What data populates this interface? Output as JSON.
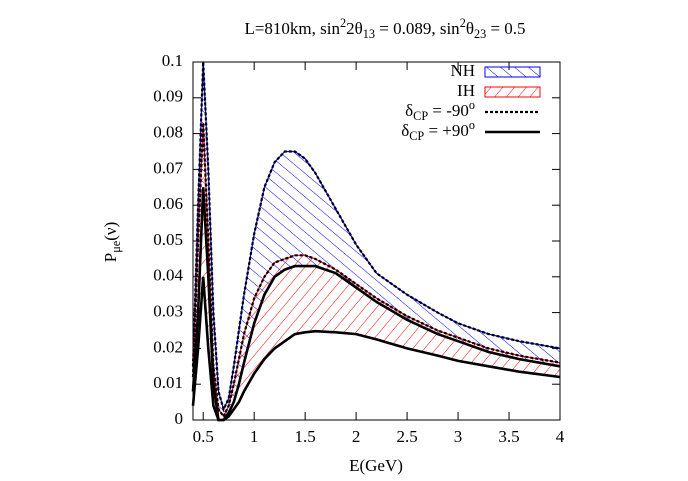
{
  "chart_data": {
    "type": "band",
    "title": [
      [
        "L=810km, sin"
      ],
      [
        "2",
        "sup"
      ],
      [
        "2θ"
      ],
      [
        "13",
        "sub"
      ],
      [
        " = 0.089, sin"
      ],
      [
        "2",
        "sup"
      ],
      [
        "θ"
      ],
      [
        "23",
        "sub"
      ],
      [
        " = 0.5"
      ]
    ],
    "xlabel": "E(GeV)",
    "ylabel": [
      [
        "P"
      ],
      [
        "μe",
        "sub"
      ],
      [
        "(ν)"
      ]
    ],
    "x": [
      0.4,
      0.45,
      0.5,
      0.55,
      0.6,
      0.65,
      0.7,
      0.75,
      0.8,
      0.85,
      0.9,
      1.0,
      1.1,
      1.2,
      1.3,
      1.4,
      1.5,
      1.6,
      1.8,
      2.0,
      2.2,
      2.5,
      2.8,
      3.0,
      3.3,
      3.6,
      4.0
    ],
    "bands": [
      {
        "name": "NH",
        "color": "#0000ff",
        "upper": [
          0.015,
          0.06,
          0.1,
          0.07,
          0.03,
          0.008,
          0.003,
          0.006,
          0.015,
          0.025,
          0.035,
          0.052,
          0.065,
          0.072,
          0.075,
          0.075,
          0.073,
          0.069,
          0.059,
          0.049,
          0.041,
          0.035,
          0.03,
          0.027,
          0.024,
          0.022,
          0.02
        ],
        "lower": [
          0.008,
          0.03,
          0.065,
          0.04,
          0.01,
          0.0,
          0.0,
          0.002,
          0.005,
          0.01,
          0.016,
          0.027,
          0.035,
          0.04,
          0.042,
          0.043,
          0.043,
          0.043,
          0.041,
          0.037,
          0.033,
          0.028,
          0.024,
          0.022,
          0.019,
          0.017,
          0.015
        ]
      },
      {
        "name": "IH",
        "color": "#ff0000",
        "upper": [
          0.012,
          0.05,
          0.083,
          0.05,
          0.015,
          0.003,
          0.001,
          0.004,
          0.01,
          0.017,
          0.024,
          0.034,
          0.04,
          0.044,
          0.045,
          0.046,
          0.046,
          0.045,
          0.042,
          0.038,
          0.034,
          0.029,
          0.025,
          0.023,
          0.02,
          0.018,
          0.016
        ],
        "lower": [
          0.004,
          0.02,
          0.04,
          0.02,
          0.004,
          0.0,
          0.0,
          0.001,
          0.003,
          0.005,
          0.008,
          0.013,
          0.017,
          0.02,
          0.022,
          0.024,
          0.0245,
          0.0248,
          0.0245,
          0.024,
          0.0225,
          0.02,
          0.018,
          0.0165,
          0.015,
          0.0135,
          0.012
        ]
      }
    ],
    "lines": [
      {
        "name": [
          [
            "δ"
          ],
          [
            "CP",
            "sub"
          ],
          [
            " = -90"
          ],
          [
            "o",
            "sup"
          ]
        ],
        "color": "#000000",
        "style": "dashed",
        "edge": "upper"
      },
      {
        "name": [
          [
            "δ"
          ],
          [
            "CP",
            "sub"
          ],
          [
            " = +90"
          ],
          [
            "o",
            "sup"
          ]
        ],
        "color": "#000000",
        "style": "solid",
        "edge": "lower"
      }
    ],
    "xlim": [
      0.4,
      4
    ],
    "ylim": [
      0,
      0.1
    ],
    "xticks": [
      0.5,
      1,
      1.5,
      2,
      2.5,
      3,
      3.5,
      4
    ],
    "yticks": [
      0,
      0.01,
      0.02,
      0.03,
      0.04,
      0.05,
      0.06,
      0.07,
      0.08,
      0.09,
      0.1
    ],
    "legend": "upper right"
  }
}
